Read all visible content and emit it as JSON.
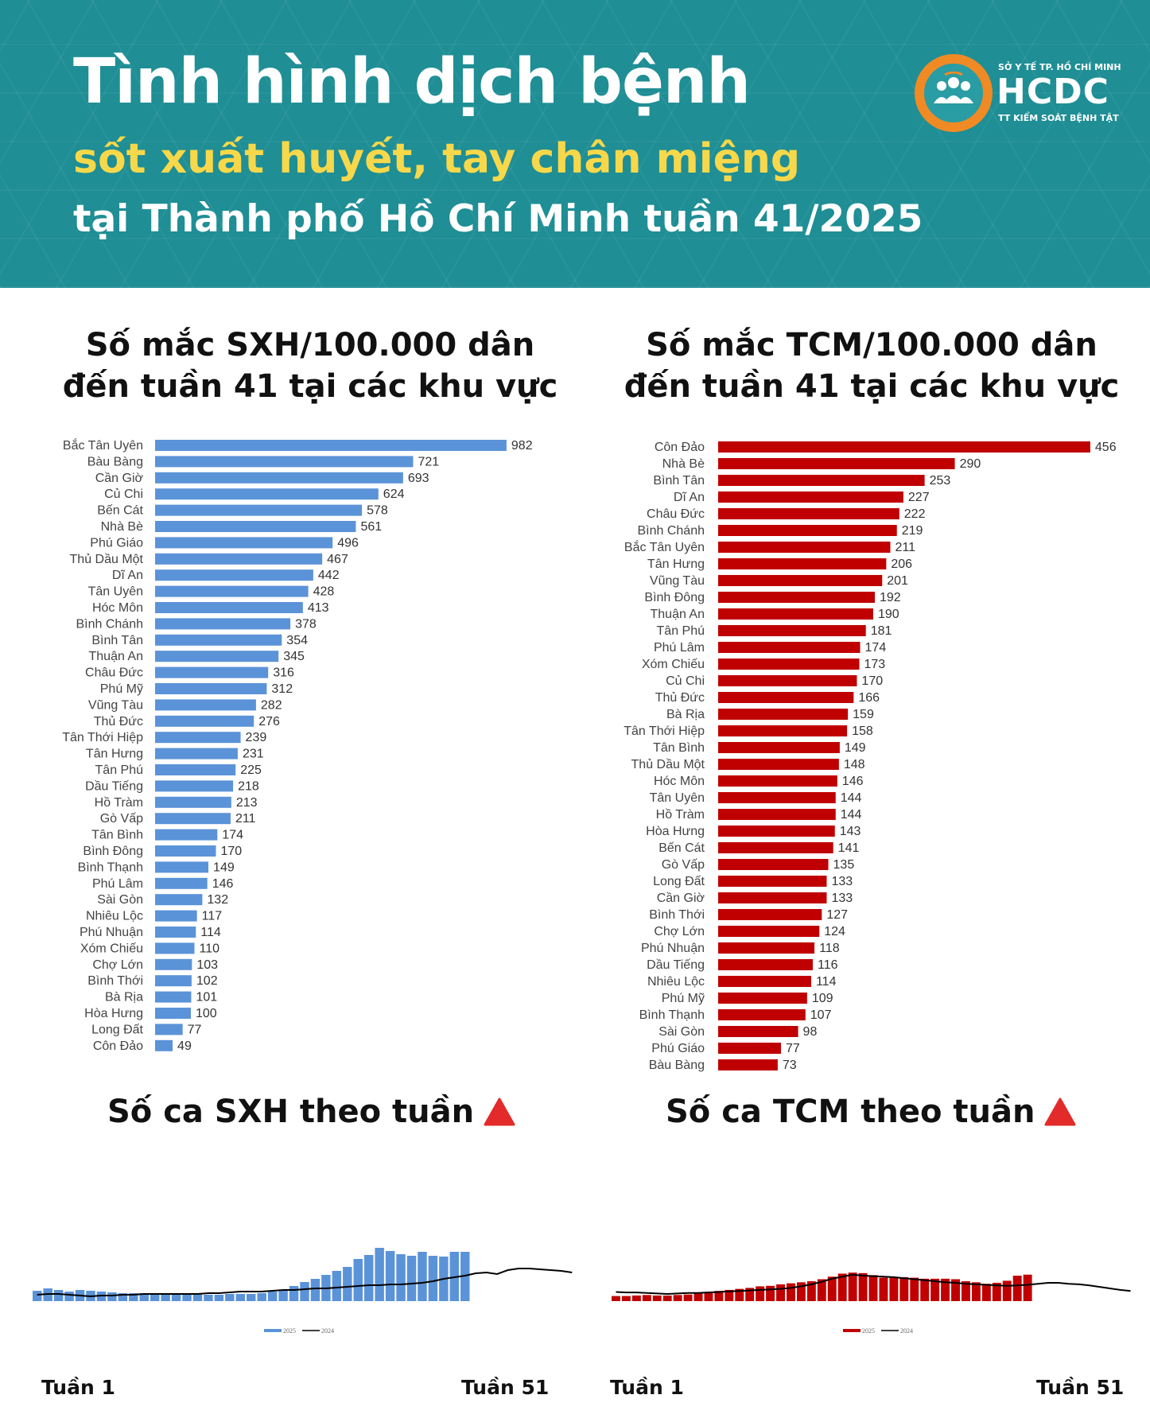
{
  "header": {
    "title_line1": "Tình hình dịch bệnh",
    "title_line2": "sốt xuất huyết, tay chân miệng",
    "title_line3": "tại Thành phố Hồ Chí Minh tuần 41/2025",
    "logo_top": "SỞ Y TẾ TP. HỒ CHÍ MINH",
    "logo_main": "HCDC",
    "logo_bottom": "TT KIỂM SOÁT BỆNH TẬT"
  },
  "colors": {
    "header_bg": "#1f8e95",
    "title_yellow": "#f7d84a",
    "sxh_blue": "#5b93d8",
    "tcm_red": "#c00000",
    "triangle_red": "#e32b2b",
    "logo_orange": "#f08a24"
  },
  "sxh_section": {
    "title_line1": "Số mắc SXH/100.000 dân",
    "title_line2": "đến tuần 41 tại các khu vực",
    "weekly_title": "Số ca SXH theo tuần",
    "trend_icon": "triangle-up-icon",
    "week_start": "Tuần 1",
    "week_end": "Tuần 51"
  },
  "tcm_section": {
    "title_line1": "Số mắc TCM/100.000 dân",
    "title_line2": "đến tuần 41 tại các khu vực",
    "weekly_title": "Số ca TCM theo tuần",
    "trend_icon": "triangle-up-icon",
    "week_start": "Tuần 1",
    "week_end": "Tuần 51"
  },
  "chart_data": [
    {
      "type": "bar",
      "orientation": "horizontal",
      "title": "Số mắc SXH/100.000 dân đến tuần 41 tại các khu vực",
      "series_color": "#5b93d8",
      "xlim": [
        0,
        1000
      ],
      "categories": [
        "Bắc Tân Uyên",
        "Bàu Bàng",
        "Cần Giờ",
        "Củ Chi",
        "Bến Cát",
        "Nhà Bè",
        "Phú Giáo",
        "Thủ Dầu Một",
        "Dĩ An",
        "Tân Uyên",
        "Hóc Môn",
        "Bình Chánh",
        "Bình Tân",
        "Thuận An",
        "Châu Đức",
        "Phú Mỹ",
        "Vũng Tàu",
        "Thủ Đức",
        "Tân Thới Hiệp",
        "Tân Hưng",
        "Tân Phú",
        "Dầu Tiếng",
        "Hồ Tràm",
        "Gò Vấp",
        "Tân Bình",
        "Bình Đông",
        "Bình Thạnh",
        "Phú Lâm",
        "Sài Gòn",
        "Nhiêu Lộc",
        "Phú Nhuận",
        "Xóm Chiếu",
        "Chợ Lớn",
        "Bình Thới",
        "Bà Rịa",
        "Hòa Hưng",
        "Long Đất",
        "Côn Đảo"
      ],
      "values": [
        982,
        721,
        693,
        624,
        578,
        561,
        496,
        467,
        442,
        428,
        413,
        378,
        354,
        345,
        316,
        312,
        282,
        276,
        239,
        231,
        225,
        218,
        213,
        211,
        174,
        170,
        149,
        146,
        132,
        117,
        114,
        110,
        103,
        102,
        101,
        100,
        77,
        49
      ]
    },
    {
      "type": "bar",
      "orientation": "horizontal",
      "title": "Số mắc TCM/100.000 dân đến tuần 41 tại các khu vực",
      "series_color": "#c00000",
      "xlim": [
        0,
        460
      ],
      "categories": [
        "Côn Đảo",
        "Nhà Bè",
        "Bình Tân",
        "Dĩ An",
        "Châu Đức",
        "Bình Chánh",
        "Bắc Tân Uyên",
        "Tân Hưng",
        "Vũng Tàu",
        "Bình Đông",
        "Thuận An",
        "Tân Phú",
        "Phú Lâm",
        "Xóm Chiếu",
        "Củ Chi",
        "Thủ Đức",
        "Bà Rịa",
        "Tân Thới Hiệp",
        "Tân Bình",
        "Thủ Dầu Một",
        "Hóc Môn",
        "Tân Uyên",
        "Hồ Tràm",
        "Hòa Hưng",
        "Bến Cát",
        "Gò Vấp",
        "Long Đất",
        "Cần Giờ",
        "Bình Thới",
        "Chợ Lớn",
        "Phú Nhuận",
        "Dầu Tiếng",
        "Nhiêu Lộc",
        "Phú Mỹ",
        "Bình Thạnh",
        "Sài Gòn",
        "Phú Giáo",
        "Bàu Bàng"
      ],
      "values": [
        456,
        290,
        253,
        227,
        222,
        219,
        211,
        206,
        201,
        192,
        190,
        181,
        174,
        173,
        170,
        166,
        159,
        158,
        149,
        148,
        146,
        144,
        144,
        143,
        141,
        135,
        133,
        133,
        127,
        124,
        118,
        116,
        114,
        109,
        107,
        98,
        77,
        73
      ]
    },
    {
      "type": "bar+line",
      "title": "Số ca SXH theo tuần",
      "x_range": [
        1,
        51
      ],
      "legend": [
        "2025",
        "2024"
      ],
      "ylim": [
        0,
        100
      ],
      "series": [
        {
          "name": "2025",
          "kind": "bar",
          "color": "#5b93d8",
          "start_week": 1,
          "values": [
            13,
            16,
            14,
            12,
            14,
            13,
            12,
            11,
            10,
            10,
            10,
            10,
            10,
            9,
            9,
            9,
            8,
            8,
            9,
            9,
            9,
            10,
            12,
            14,
            19,
            24,
            28,
            33,
            38,
            43,
            53,
            58,
            67,
            63,
            59,
            57,
            62,
            57,
            56,
            62,
            62
          ]
        },
        {
          "name": "2024",
          "kind": "line",
          "color": "#000000",
          "start_week": 1,
          "values": [
            8,
            9,
            9,
            8,
            7,
            6,
            7,
            7,
            8,
            8,
            9,
            9,
            9,
            9,
            9,
            9,
            10,
            10,
            11,
            12,
            12,
            12,
            13,
            14,
            14,
            15,
            16,
            16,
            17,
            18,
            19,
            20,
            20,
            21,
            21,
            22,
            23,
            25,
            28,
            30,
            32,
            35,
            36,
            34,
            39,
            41,
            41,
            40,
            39,
            38,
            36
          ]
        }
      ]
    },
    {
      "type": "bar+line",
      "title": "Số ca TCM theo tuần",
      "x_range": [
        1,
        51
      ],
      "legend": [
        "2025",
        "2024"
      ],
      "ylim": [
        0,
        100
      ],
      "series": [
        {
          "name": "2025",
          "kind": "bar",
          "color": "#c00000",
          "start_week": 1,
          "values": [
            10,
            10,
            11,
            12,
            11,
            11,
            12,
            13,
            15,
            18,
            20,
            22,
            24,
            26,
            29,
            30,
            33,
            35,
            37,
            39,
            43,
            48,
            54,
            56,
            55,
            51,
            46,
            47,
            47,
            46,
            44,
            44,
            44,
            43,
            39,
            37,
            34,
            36,
            40,
            50,
            52
          ]
        },
        {
          "name": "2024",
          "kind": "line",
          "color": "#000000",
          "start_week": 1,
          "values": [
            18,
            17,
            17,
            16,
            15,
            14,
            15,
            16,
            16,
            17,
            18,
            19,
            20,
            21,
            22,
            23,
            24,
            26,
            29,
            33,
            38,
            44,
            48,
            52,
            50,
            49,
            48,
            47,
            45,
            43,
            41,
            39,
            37,
            36,
            34,
            33,
            32,
            31,
            30,
            31,
            32,
            34,
            36,
            36,
            34,
            33,
            31,
            28,
            25,
            22,
            20
          ]
        }
      ]
    }
  ]
}
